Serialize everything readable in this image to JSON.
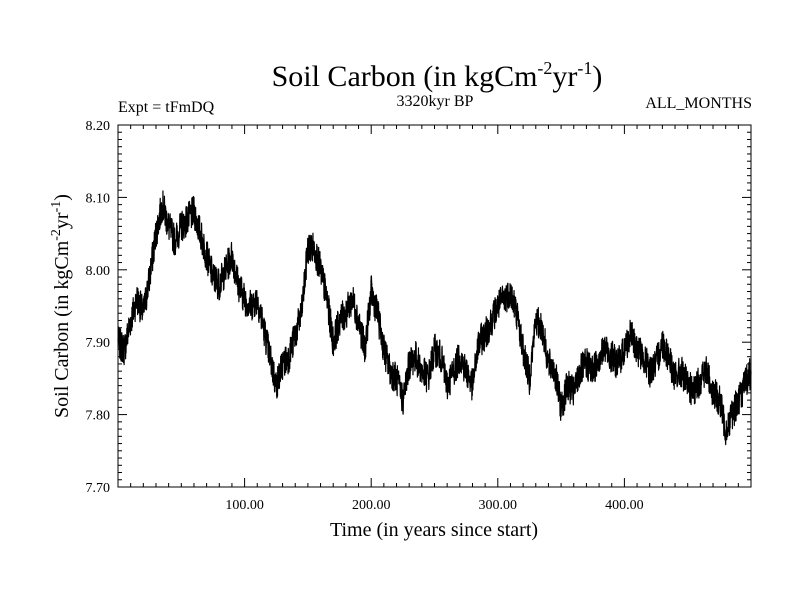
{
  "chart_data": {
    "type": "line",
    "title": {
      "base": "Soil Carbon (in kgCm",
      "sup1": "-2",
      "mid": "yr",
      "sup2": "-1",
      "end": ")"
    },
    "subtitle": "3320kyr BP",
    "expt_label": "Expt = tFmDQ",
    "months_label": "ALL_MONTHS",
    "xlabel": "Time (in years since start)",
    "ylabel": {
      "base": "Soil Carbon (in kgCm",
      "sup1": "-2",
      "mid": "yr",
      "sup2": "-1",
      "end": ")"
    },
    "xlim": [
      0,
      500
    ],
    "ylim": [
      7.7,
      8.2
    ],
    "x_ticks": [
      100,
      200,
      300,
      400
    ],
    "x_tick_labels": [
      "100.00",
      "200.00",
      "300.00",
      "400.00"
    ],
    "y_ticks": [
      7.7,
      7.8,
      7.9,
      8.0,
      8.1,
      8.2
    ],
    "y_tick_labels": [
      "7.70",
      "7.80",
      "7.90",
      "8.00",
      "8.10",
      "8.20"
    ],
    "grid": false,
    "series": [
      {
        "color": "#000000",
        "x": [
          0,
          5,
          10,
          15,
          20,
          25,
          30,
          35,
          40,
          45,
          50,
          55,
          60,
          65,
          70,
          75,
          80,
          85,
          90,
          95,
          100,
          105,
          110,
          115,
          120,
          125,
          130,
          135,
          140,
          145,
          150,
          155,
          160,
          165,
          170,
          175,
          180,
          185,
          190,
          195,
          200,
          205,
          210,
          215,
          220,
          225,
          230,
          235,
          240,
          245,
          250,
          255,
          260,
          265,
          270,
          275,
          280,
          285,
          290,
          295,
          300,
          305,
          310,
          315,
          320,
          325,
          330,
          335,
          340,
          345,
          350,
          355,
          360,
          365,
          370,
          375,
          380,
          385,
          390,
          395,
          400,
          405,
          410,
          415,
          420,
          425,
          430,
          435,
          440,
          445,
          450,
          455,
          460,
          465,
          470,
          475,
          480,
          485,
          490,
          495,
          500
        ],
        "y": [
          7.9,
          7.89,
          7.93,
          7.96,
          7.94,
          7.99,
          8.05,
          8.09,
          8.06,
          8.04,
          8.06,
          8.07,
          8.08,
          8.05,
          8.02,
          7.99,
          7.98,
          8.0,
          8.02,
          7.98,
          7.96,
          7.95,
          7.96,
          7.92,
          7.88,
          7.84,
          7.87,
          7.88,
          7.91,
          7.94,
          8.03,
          8.03,
          8.0,
          7.96,
          7.9,
          7.93,
          7.94,
          7.96,
          7.93,
          7.89,
          7.97,
          7.94,
          7.89,
          7.86,
          7.85,
          7.82,
          7.87,
          7.88,
          7.86,
          7.85,
          7.89,
          7.88,
          7.84,
          7.86,
          7.88,
          7.86,
          7.84,
          7.9,
          7.91,
          7.93,
          7.95,
          7.96,
          7.97,
          7.94,
          7.89,
          7.85,
          7.93,
          7.92,
          7.87,
          7.86,
          7.81,
          7.84,
          7.83,
          7.86,
          7.87,
          7.86,
          7.88,
          7.89,
          7.88,
          7.87,
          7.89,
          7.91,
          7.89,
          7.88,
          7.86,
          7.87,
          7.9,
          7.88,
          7.85,
          7.86,
          7.84,
          7.83,
          7.85,
          7.86,
          7.83,
          7.82,
          7.78,
          7.8,
          7.82,
          7.84,
          7.86
        ]
      }
    ]
  }
}
